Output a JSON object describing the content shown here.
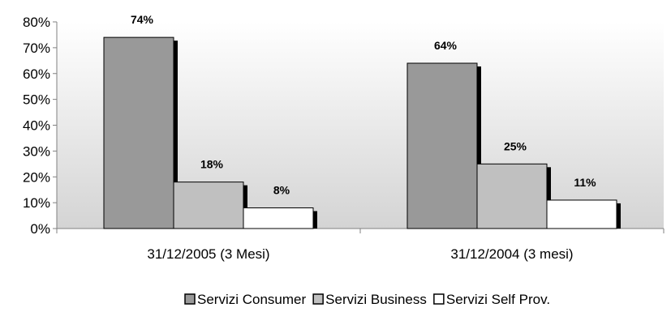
{
  "chart_data": {
    "type": "bar",
    "title": "",
    "xlabel": "",
    "ylabel": "",
    "ylim": [
      0,
      80
    ],
    "yticks": [
      0,
      10,
      20,
      30,
      40,
      50,
      60,
      70,
      80
    ],
    "ytick_format": "percent",
    "categories": [
      "31/12/2005 (3 Mesi)",
      "31/12/2004 (3 mesi)"
    ],
    "series": [
      {
        "name": "Servizi Consumer",
        "values": [
          74,
          64
        ],
        "color": "#999999"
      },
      {
        "name": "Servizi Business",
        "values": [
          18,
          25
        ],
        "color": "#c0c0c0"
      },
      {
        "name": "Servizi Self Prov.",
        "values": [
          8,
          11
        ],
        "color": "#ffffff"
      }
    ],
    "data_labels": [
      [
        "74%",
        "64%"
      ],
      [
        "18%",
        "25%"
      ],
      [
        "8%",
        "11%"
      ]
    ],
    "grid": false,
    "legend_position": "bottom",
    "plot_background": "gradient-gray"
  }
}
